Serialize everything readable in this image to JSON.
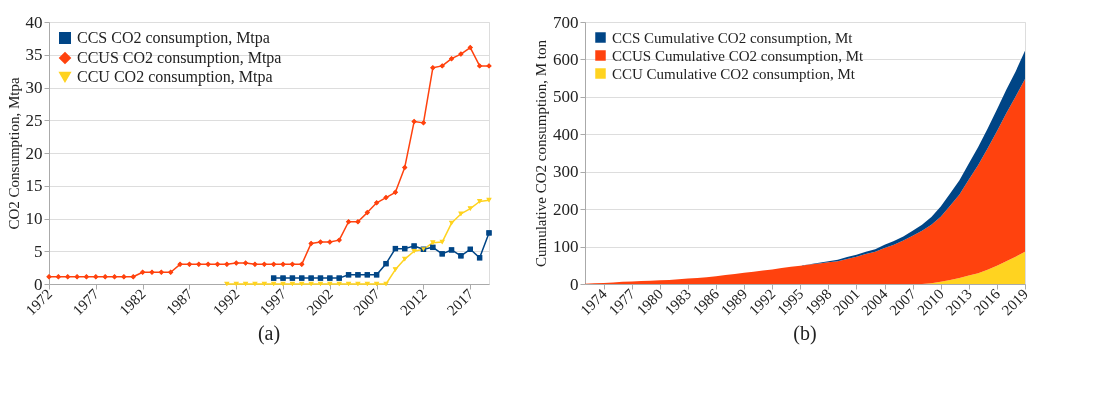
{
  "chart_data": [
    {
      "type": "line",
      "ylabel": "CO2 Consumption, Mtpa",
      "annotations": [
        "(a)"
      ],
      "x": [
        1972,
        1973,
        1974,
        1975,
        1976,
        1977,
        1978,
        1979,
        1980,
        1981,
        1982,
        1983,
        1984,
        1985,
        1986,
        1987,
        1988,
        1989,
        1990,
        1991,
        1992,
        1993,
        1994,
        1995,
        1996,
        1997,
        1998,
        1999,
        2000,
        2001,
        2002,
        2003,
        2004,
        2005,
        2006,
        2007,
        2008,
        2009,
        2010,
        2011,
        2012,
        2013,
        2014,
        2015,
        2016,
        2017,
        2018,
        2019
      ],
      "series": [
        {
          "name": "CCS CO2 consumption, Mtpa",
          "color": "#004586",
          "marker": "square",
          "values": [
            null,
            null,
            null,
            null,
            null,
            null,
            null,
            null,
            null,
            null,
            null,
            null,
            null,
            null,
            null,
            null,
            null,
            null,
            null,
            null,
            null,
            null,
            null,
            null,
            0.9,
            0.9,
            0.9,
            0.9,
            0.9,
            0.9,
            0.9,
            0.9,
            1.4,
            1.4,
            1.4,
            1.4,
            3.1,
            5.4,
            5.4,
            5.8,
            5.3,
            5.6,
            4.6,
            5.2,
            4.3,
            5.3,
            4.0,
            7.8
          ]
        },
        {
          "name": "CCUS CO2 consumption, Mtpa",
          "color": "#ff420e",
          "marker": "diamond",
          "values": [
            1.1,
            1.1,
            1.1,
            1.1,
            1.1,
            1.1,
            1.1,
            1.1,
            1.1,
            1.1,
            1.8,
            1.8,
            1.8,
            1.8,
            3.0,
            3.0,
            3.0,
            3.0,
            3.0,
            3.0,
            3.2,
            3.2,
            3.0,
            3.0,
            3.0,
            3.0,
            3.0,
            3.0,
            6.2,
            6.4,
            6.4,
            6.7,
            9.5,
            9.5,
            10.9,
            12.4,
            13.2,
            14.0,
            17.8,
            24.8,
            24.6,
            33.0,
            33.3,
            34.4,
            35.1,
            36.1,
            33.3,
            33.3
          ]
        },
        {
          "name": "CCU CO2 consumption, Mtpa",
          "color": "#ffd320",
          "marker": "triangle",
          "values": [
            null,
            null,
            null,
            null,
            null,
            null,
            null,
            null,
            null,
            null,
            null,
            null,
            null,
            null,
            null,
            null,
            null,
            null,
            null,
            0,
            0,
            0,
            0,
            0,
            0,
            0,
            0,
            0,
            0,
            0,
            0,
            0,
            0,
            0,
            0,
            0,
            0,
            2.2,
            3.8,
            5.0,
            5.3,
            6.3,
            6.4,
            9.3,
            10.7,
            11.5,
            12.6,
            12.8
          ]
        }
      ],
      "xlim": [
        1972,
        2019
      ],
      "xticks": [
        1972,
        1977,
        1982,
        1987,
        1992,
        1997,
        2002,
        2007,
        2012,
        2017
      ],
      "ylim": [
        0,
        40
      ],
      "yticks": [
        0,
        5,
        10,
        15,
        20,
        25,
        30,
        35,
        40
      ],
      "grid": "y",
      "legend": "top left"
    },
    {
      "type": "area",
      "stacked": true,
      "ylabel": "Cumulative CO2 consumption, M ton",
      "annotations": [
        "(b)"
      ],
      "x": [
        1972,
        1973,
        1974,
        1975,
        1976,
        1977,
        1978,
        1979,
        1980,
        1981,
        1982,
        1983,
        1984,
        1985,
        1986,
        1987,
        1988,
        1989,
        1990,
        1991,
        1992,
        1993,
        1994,
        1995,
        1996,
        1997,
        1998,
        1999,
        2000,
        2001,
        2002,
        2003,
        2004,
        2005,
        2006,
        2007,
        2008,
        2009,
        2010,
        2011,
        2012,
        2013,
        2014,
        2015,
        2016,
        2017,
        2018,
        2019
      ],
      "series": [
        {
          "name": "CCU Cumulative CO2 consumption, Mt",
          "color": "#ffd320",
          "values": [
            0,
            0,
            0,
            0,
            0,
            0,
            0,
            0,
            0,
            0,
            0,
            0,
            0,
            0,
            0,
            0,
            0,
            0,
            0,
            0,
            0,
            0,
            0,
            0,
            0,
            0,
            0,
            0,
            0,
            0,
            0,
            0,
            0,
            0,
            0,
            0,
            0,
            2,
            6,
            11,
            16,
            23,
            29,
            38,
            49,
            61,
            73,
            86
          ]
        },
        {
          "name": "CCUS Cumulative CO2 consumption, Mt",
          "color": "#ff420e",
          "values": [
            1,
            2,
            3,
            4,
            6,
            7,
            8,
            9,
            10,
            11,
            13,
            15,
            16,
            18,
            21,
            24,
            27,
            30,
            33,
            36,
            39,
            43,
            46,
            49,
            52,
            55,
            58,
            61,
            67,
            73,
            80,
            86,
            96,
            105,
            116,
            129,
            142,
            156,
            174,
            198,
            223,
            256,
            289,
            324,
            359,
            395,
            428,
            462
          ]
        },
        {
          "name": "CCS Cumulative CO2 consumption, Mt",
          "color": "#004586",
          "values": [
            0,
            0,
            0,
            0,
            0,
            0,
            0,
            0,
            0,
            0,
            0,
            0,
            0,
            0,
            0,
            0,
            0,
            0,
            0,
            0,
            0,
            0,
            0,
            0,
            1,
            2,
            3,
            4,
            5,
            5,
            6,
            7,
            9,
            10,
            11,
            13,
            16,
            21,
            27,
            33,
            38,
            43,
            48,
            53,
            58,
            63,
            67,
            75
          ]
        }
      ],
      "xlim": [
        1972,
        2019
      ],
      "xticks": [
        1974,
        1977,
        1980,
        1983,
        1986,
        1989,
        1992,
        1995,
        1998,
        2001,
        2004,
        2007,
        2010,
        2013,
        2016,
        2019
      ],
      "ylim": [
        0,
        700
      ],
      "yticks": [
        0,
        100,
        200,
        300,
        400,
        500,
        600,
        700
      ],
      "grid": "y",
      "legend": "top left"
    }
  ]
}
